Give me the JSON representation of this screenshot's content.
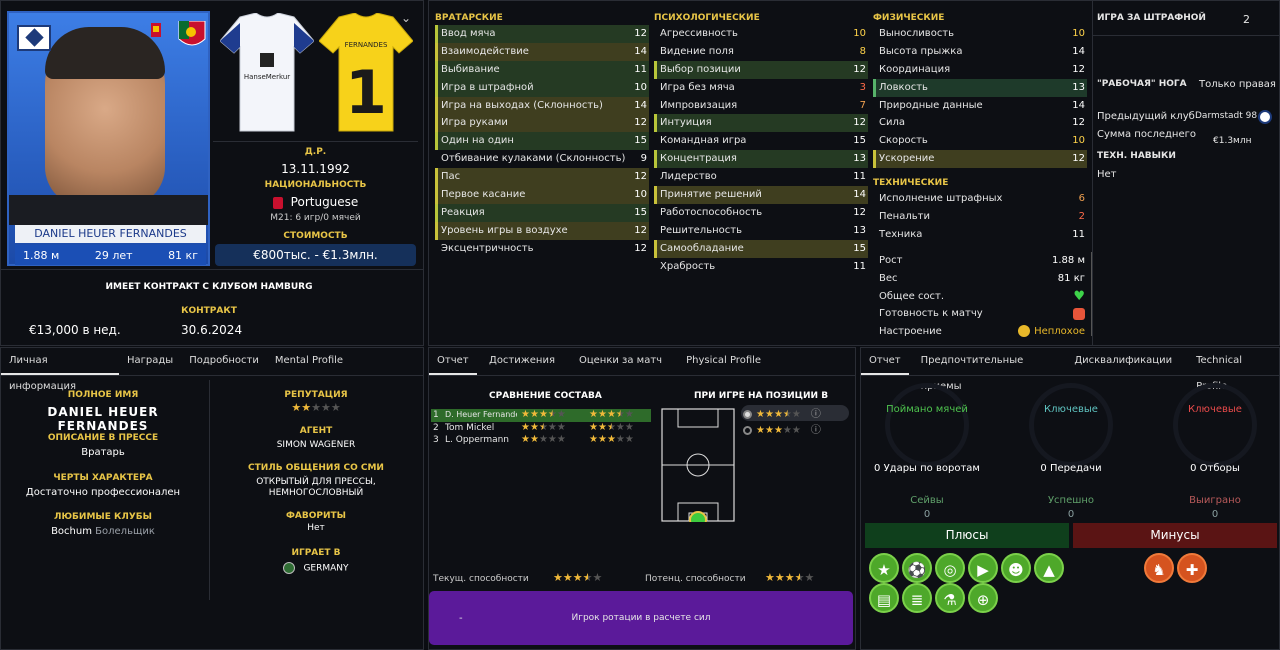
{
  "profile": {
    "name_bar": "DANIEL HEUER FERNANDES",
    "height": "1.88 м",
    "age": "29 лет",
    "weight": "81 кг",
    "dob_label": "Д.Р.",
    "dob": "13.11.1992",
    "nationality_label": "НАЦИОНАЛЬНОСТЬ",
    "nationality": "Portuguese",
    "u21": "M21: 6 игр/0 мячей",
    "value_label": "СТОИМОСТЬ",
    "value": "€800тыс. - €1.3млн.",
    "contract_text": "ИМЕЕТ КОНТРАКТ С КЛУБОМ HAMBURG",
    "wage": "€13,000 в нед.",
    "contract_label": "КОНТРАКТ",
    "contract_end": "30.6.2024",
    "kit_home_sponsor": "HanseMerkur",
    "kit_gk_name": "FERNANDES",
    "kit_gk_number": "1"
  },
  "attributes": {
    "goalkeeping": {
      "title": "ВРАТАРСКИЕ",
      "rows": [
        {
          "label": "Ввод мяча",
          "value": "12"
        },
        {
          "label": "Взаимодействие",
          "value": "14"
        },
        {
          "label": "Выбивание",
          "value": "11"
        },
        {
          "label": "Игра в штрафной",
          "value": "10"
        },
        {
          "label": "Игра на выходах (Склонность)",
          "value": "14"
        },
        {
          "label": "Игра руками",
          "value": "12"
        },
        {
          "label": "Один на один",
          "value": "15"
        },
        {
          "label": "Отбивание кулаками (Склонность)",
          "value": "9"
        },
        {
          "label": "Пас",
          "value": "12"
        },
        {
          "label": "Первое касание",
          "value": "10"
        },
        {
          "label": "Реакция",
          "value": "15"
        },
        {
          "label": "Уровень игры в воздухе",
          "value": "12"
        },
        {
          "label": "Эксцентричность",
          "value": "12"
        }
      ]
    },
    "mental": {
      "title": "ПСИХОЛОГИЧЕСКИЕ",
      "rows": [
        {
          "label": "Агрессивность",
          "value": "10"
        },
        {
          "label": "Видение поля",
          "value": "8"
        },
        {
          "label": "Выбор позиции",
          "value": "12"
        },
        {
          "label": "Игра без мяча",
          "value": "3"
        },
        {
          "label": "Импровизация",
          "value": "7"
        },
        {
          "label": "Интуиция",
          "value": "12"
        },
        {
          "label": "Командная игра",
          "value": "15"
        },
        {
          "label": "Концентрация",
          "value": "13"
        },
        {
          "label": "Лидерство",
          "value": "11"
        },
        {
          "label": "Принятие решений",
          "value": "14"
        },
        {
          "label": "Работоспособность",
          "value": "12"
        },
        {
          "label": "Решительность",
          "value": "13"
        },
        {
          "label": "Самообладание",
          "value": "15"
        },
        {
          "label": "Храбрость",
          "value": "11"
        }
      ]
    },
    "physical": {
      "title": "ФИЗИЧЕСКИЕ",
      "rows": [
        {
          "label": "Выносливость",
          "value": "10"
        },
        {
          "label": "Высота прыжка",
          "value": "14"
        },
        {
          "label": "Координация",
          "value": "12"
        },
        {
          "label": "Ловкость",
          "value": "13"
        },
        {
          "label": "Природные данные",
          "value": "14"
        },
        {
          "label": "Сила",
          "value": "12"
        },
        {
          "label": "Скорость",
          "value": "10"
        },
        {
          "label": "Ускорение",
          "value": "12"
        }
      ]
    },
    "technical": {
      "title": "ТЕХНИЧЕСКИЕ",
      "rows": [
        {
          "label": "Исполнение штрафных",
          "value": "6"
        },
        {
          "label": "Пенальти",
          "value": "2"
        },
        {
          "label": "Техника",
          "value": "11"
        }
      ]
    },
    "info": {
      "height_label": "Рост",
      "height": "1.88 м",
      "weight_label": "Вес",
      "weight": "81 кг",
      "condition_label": "Общее сост.",
      "fitness_label": "Готовность к матчу",
      "morale_label": "Настроение",
      "morale": "Неплохое"
    }
  },
  "sidebar": {
    "box_play_label": "ИГРА ЗА ШТРАФНОЙ",
    "box_play_value": "2",
    "foot_label": "\"РАБОЧАЯ\" НОГА",
    "foot_value": "Только правая",
    "prev_club_label": "Предыдущий клуб",
    "prev_club": "Darmstadt 98",
    "last_fee_label": "Сумма последнего",
    "last_fee": "€1.3млн",
    "tech_skills_label": "ТЕХН. НАВЫКИ",
    "tech_skills_value": "Нет"
  },
  "personal": {
    "tabs": [
      "Личная информация",
      "Награды",
      "Подробности",
      "Mental Profile"
    ],
    "full_name_label": "ПОЛНОЕ ИМЯ",
    "full_name": "DANIEL HEUER FERNANDES",
    "press_label": "ОПИСАНИЕ В ПРЕССЕ",
    "press": "Вратарь",
    "traits_label": "ЧЕРТЫ ХАРАКТЕРА",
    "traits": "Достаточно профессионален",
    "clubs_label": "ЛЮБИМЫЕ КЛУБЫ",
    "clubs": "Bochum",
    "clubs_suffix": "Болельщик",
    "reputation_label": "РЕПУТАЦИЯ",
    "reputation_stars": 2,
    "agent_label": "АГЕНТ",
    "agent": "SIMON WAGENER",
    "media_label": "СТИЛЬ ОБЩЕНИЯ СО СМИ",
    "media": "ОТКРЫТЫЙ ДЛЯ ПРЕССЫ, НЕМНОГОСЛОВНЫЙ",
    "favorites_label": "ФАВОРИТЫ",
    "favorites": "Нет",
    "plays_in_label": "ИГРАЕТ В",
    "plays_in": "GERMANY"
  },
  "report": {
    "tabs": [
      "Отчет",
      "Достижения",
      "Оценки за матч",
      "Physical Profile"
    ],
    "compare_title": "СРАВНЕНИЕ СОСТАВА",
    "position_title": "ПРИ ИГРЕ НА ПОЗИЦИИ В",
    "squad": [
      {
        "rank": "1",
        "name": "D. Heuer Fernandes",
        "cur": 3.5,
        "pot": 3.5
      },
      {
        "rank": "2",
        "name": "Tom Mickel",
        "cur": 2.5,
        "pot": 2.5
      },
      {
        "rank": "3",
        "name": "L. Oppermann",
        "cur": 2,
        "pot": 3
      }
    ],
    "position_ratings": [
      3.5,
      3
    ],
    "current_label": "Текущ. способности",
    "current_stars": 3.5,
    "potential_label": "Потенц. способности",
    "potential_stars": 3.5,
    "role_dash": "-",
    "role": "Игрок ротации в расчете сил"
  },
  "technical": {
    "tabs": [
      "Отчет",
      "Предпочтительные приемы",
      "Дисквалификации",
      "Technical Profile"
    ],
    "ring1_title": "Поймано мячей",
    "ring2_title": "Ключевые",
    "ring3_title": "Ключевые",
    "stat1": "0 Удары по воротам",
    "stat2": "0 Передачи",
    "stat3": "0 Отборы",
    "sub1_label": "Сейвы",
    "sub1": "0",
    "sub2_label": "Успешно",
    "sub2": "0",
    "sub3_label": "Выиграно",
    "sub3": "0",
    "pros_label": "Плюсы",
    "cons_label": "Минусы",
    "pros_icons": [
      "star-icon",
      "ball-icon",
      "target-icon",
      "boot-icon",
      "head-icon",
      "cone-icon",
      "clipboard-icon",
      "clipboard-list-icon",
      "flask-icon",
      "globe-icon"
    ],
    "cons_icons": [
      "foot-icon",
      "cone-plus-icon"
    ],
    "colors": {
      "pros": "#0f3f1c",
      "cons": "#5a1414",
      "ring1": "#4ec44e",
      "ring2": "#5fc3c0",
      "ring3": "#e64a4a"
    }
  }
}
